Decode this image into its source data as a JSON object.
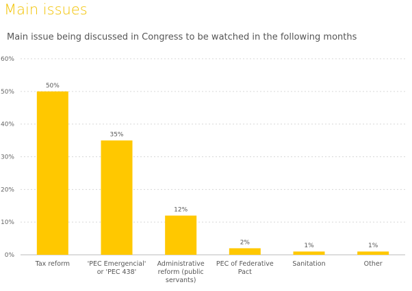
{
  "header": {
    "title": "Main issues",
    "subtitle": "Main issue being discussed in Congress to be watched in the following months"
  },
  "colors": {
    "bar": "#ffc800",
    "title": "#f2c200",
    "grid": "#d6d6d6",
    "axis": "#bbbbbb",
    "text": "#555555"
  },
  "chart_data": {
    "type": "bar",
    "categories": [
      [
        "Tax reform"
      ],
      [
        "'PEC Emergencial'",
        "or 'PEC 438'"
      ],
      [
        "Administrative",
        "reform (public",
        "servants)"
      ],
      [
        "PEC of Federative",
        "Pact"
      ],
      [
        "Sanitation"
      ],
      [
        "Other"
      ]
    ],
    "values": [
      50,
      35,
      12,
      2,
      1,
      1
    ],
    "value_labels": [
      "50%",
      "35%",
      "12%",
      "2%",
      "1%",
      "1%"
    ],
    "y_ticks": [
      0,
      10,
      20,
      30,
      40,
      50,
      60
    ],
    "y_tick_labels": [
      "0%",
      "10%",
      "20%",
      "30%",
      "40%",
      "50%",
      "60%"
    ],
    "ylim": [
      0,
      60
    ],
    "grid": "dotted horizontal",
    "legend": "none"
  }
}
